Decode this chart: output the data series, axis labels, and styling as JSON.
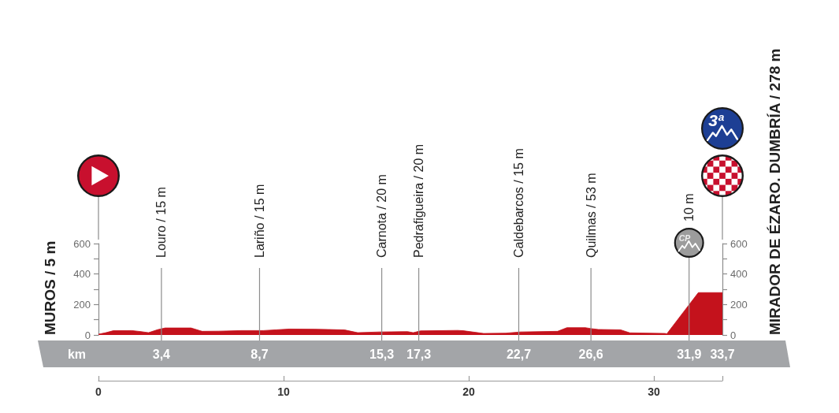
{
  "chart_data": {
    "type": "area",
    "color": "#c4121c",
    "marker": "none",
    "grid": false,
    "x": [
      0,
      0.4,
      0.8,
      1.8,
      2.3,
      2.7,
      3.2,
      3.6,
      5.0,
      5.6,
      6.5,
      7.7,
      8.9,
      9.6,
      10.3,
      11.7,
      12.4,
      13.3,
      14.0,
      15.2,
      16.7,
      17.0,
      17.4,
      19.4,
      19.7,
      20.8,
      22.0,
      22.8,
      24.8,
      25.3,
      26.3,
      26.6,
      27.0,
      28.2,
      28.7,
      30.6,
      30.7,
      32.4,
      33.7
    ],
    "values": [
      5,
      15,
      28,
      29,
      22,
      15,
      35,
      46,
      46,
      24,
      25,
      29,
      29,
      34,
      39,
      38,
      36,
      33,
      15,
      20,
      22,
      15,
      27,
      30,
      28,
      10,
      12,
      20,
      24,
      48,
      48,
      42,
      36,
      34,
      14,
      10,
      8,
      278,
      278
    ],
    "ylabel": "MUROS / 5 m",
    "y2label": "MIRADOR DE ÉZARO. DUMBRÍA / 278 m",
    "xlim": [
      0,
      33.7
    ],
    "xticks": [
      0,
      10,
      20,
      30,
      {
        "value": 33.7,
        "label": null
      }
    ],
    "x2lim": [
      0,
      33.7
    ],
    "x2label": "km",
    "x2ticks": [
      {
        "value": 3.4,
        "label": "3,4"
      },
      {
        "value": 8.7,
        "label": "8,7"
      },
      {
        "value": 15.3,
        "label": "15,3"
      },
      {
        "value": 17.3,
        "label": "17,3"
      },
      {
        "value": 22.7,
        "label": "22,7"
      },
      {
        "value": 26.6,
        "label": "26,6"
      },
      {
        "value": 31.9,
        "label": "31,9"
      },
      {
        "value": 33.7,
        "label": "33,7"
      }
    ],
    "ylim": [
      0,
      600
    ],
    "yticks": [
      0,
      {
        "value": 100,
        "label": null
      },
      200,
      {
        "value": 300,
        "label": null
      },
      400,
      {
        "value": 500,
        "label": null
      },
      600
    ],
    "y2lim": [
      0,
      600
    ],
    "y2ticks": [
      0,
      {
        "value": 100,
        "label": null
      },
      200,
      {
        "value": 300,
        "label": null
      },
      400,
      {
        "value": 500,
        "label": null
      },
      600
    ],
    "ref_lines": [
      {
        "axis": "x",
        "value": 3.4,
        "label": "Louro / 15 m",
        "color": "#8c8c8c"
      },
      {
        "axis": "x",
        "value": 8.7,
        "label": "Lariño / 15 m",
        "color": "#8c8c8c"
      },
      {
        "axis": "x",
        "value": 15.3,
        "label": "Carnota / 20 m",
        "color": "#8c8c8c"
      },
      {
        "axis": "x",
        "value": 17.3,
        "label": "Pedrafigueira / 20 m",
        "color": "#8c8c8c"
      },
      {
        "axis": "x",
        "value": 22.7,
        "label": "Caldebarcos / 15 m",
        "color": "#8c8c8c"
      },
      {
        "axis": "x",
        "value": 26.6,
        "label": "Quilmas / 53 m",
        "color": "#8c8c8c"
      },
      {
        "axis": "x",
        "value": 31.9,
        "label": "10 m",
        "color": "#8c8c8c"
      }
    ],
    "annotations": [
      "CP",
      "3ª"
    ]
  }
}
